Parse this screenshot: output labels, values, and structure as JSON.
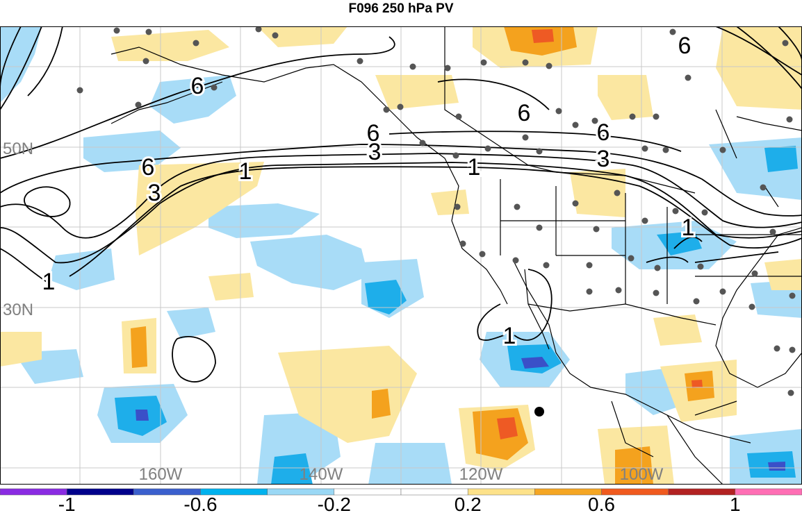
{
  "title": "F096 250 hPa PV",
  "lat_labels": [
    "50N",
    "30N"
  ],
  "lon_labels": [
    "160W",
    "140W",
    "120W",
    "100W"
  ],
  "contour_labels": [
    "6",
    "6",
    "6",
    "6",
    "6",
    "6",
    "3",
    "3",
    "3",
    "1",
    "1",
    "1",
    "1",
    "1"
  ],
  "colorbar": {
    "colors": [
      "#8a2be2",
      "#00008b",
      "#3a5fcd",
      "#00b2ee",
      "#9ad8f5",
      "#ffffff",
      "#ffffff",
      "#fde28a",
      "#f5a623",
      "#f05a1e",
      "#b22222",
      "#ff6eb4"
    ],
    "labels": [
      "-1",
      "-0.6",
      "-0.2",
      "0.2",
      "0.6",
      "1"
    ]
  },
  "colors": {
    "light_blue": "#a8dcf7",
    "mid_blue": "#1eaeea",
    "dark_blue": "#3a50c8",
    "light_yellow": "#fbe7a1",
    "orange": "#f4a21e",
    "red_orange": "#ee5a24",
    "station_dot": "#555555",
    "grid_line": "#c8c8c8",
    "contour": "#000000"
  }
}
